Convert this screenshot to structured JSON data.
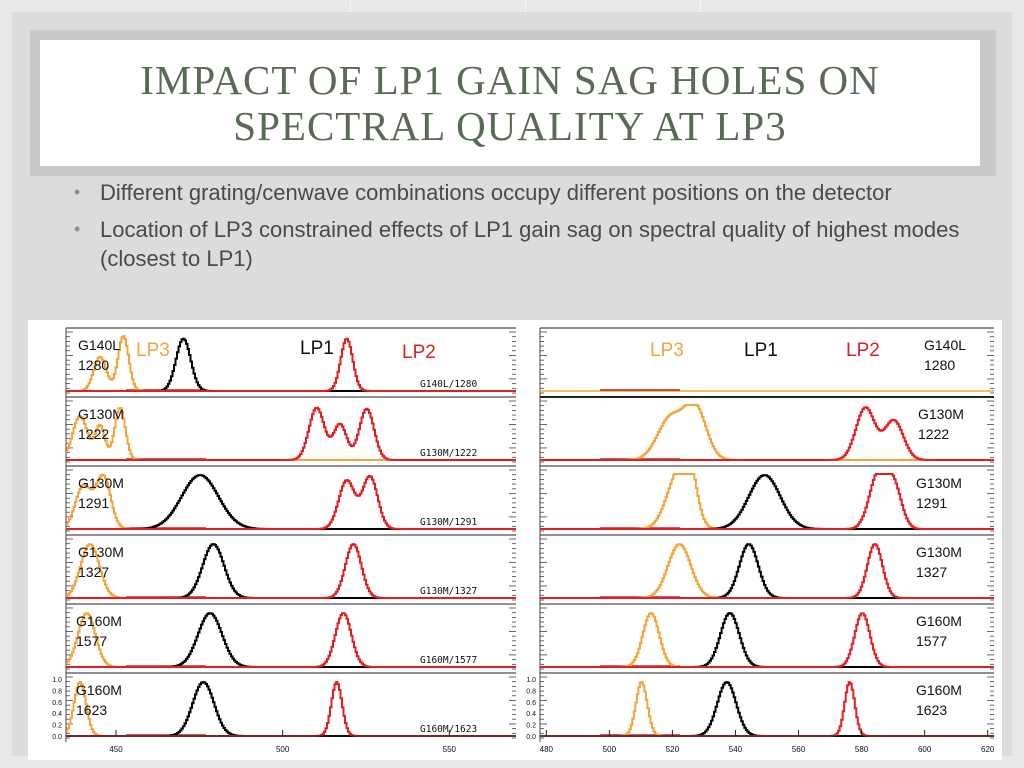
{
  "slide": {
    "title_line1": "IMPACT OF LP1 GAIN SAG HOLES ON",
    "title_line2": "SPECTRAL QUALITY AT LP3",
    "bullets": [
      "Different grating/cenwave combinations occupy different positions on the detector",
      "Location of LP3 constrained effects of LP1 gain sag on spectral quality of highest modes (closest to LP1)"
    ]
  },
  "colors": {
    "lp3": "#f5a43a",
    "lp1": "#000000",
    "lp2": "#e02020",
    "title": "#596b56"
  },
  "chart_data": [
    {
      "type": "line",
      "peak_labels": [
        "LP3",
        "LP1",
        "LP2"
      ],
      "y_ticks": [
        "1.0",
        "0.8",
        "0.6",
        "0.4",
        "0.2",
        "0.0"
      ],
      "x_ticks": [
        "450",
        "500",
        "550"
      ],
      "xlim": [
        435,
        570
      ],
      "panels": [
        {
          "label1": "G140L",
          "label2": "1280",
          "tag": "G140L/1280",
          "lp3": [
            [
              445,
              0.62,
              1.9
            ],
            [
              452,
              1.0,
              1.6
            ]
          ],
          "lp1": [
            [
              470,
              0.95,
              2.2
            ]
          ],
          "lp2": [
            [
              519,
              0.95,
              1.8
            ]
          ]
        },
        {
          "label1": "G130M",
          "label2": "1222",
          "tag": "G130M/1222",
          "lp3": [
            [
              439,
              0.8,
              2.2
            ],
            [
              445,
              0.62,
              1.5
            ],
            [
              451,
              0.95,
              1.6
            ]
          ],
          "lp1": [],
          "lp2": [
            [
              510,
              0.95,
              2.3
            ],
            [
              517,
              0.65,
              2.0
            ],
            [
              525,
              0.93,
              2.2
            ]
          ]
        },
        {
          "label1": "G130M",
          "label2": "1291",
          "tag": "G130M/1291",
          "lp3": [
            [
              440,
              0.78,
              2.4
            ],
            [
              446,
              0.95,
              2.2
            ]
          ],
          "lp1": [
            [
              475,
              0.98,
              5.5
            ]
          ],
          "lp2": [
            [
              519,
              0.88,
              2.4
            ],
            [
              526,
              0.95,
              2.3
            ]
          ]
        },
        {
          "label1": "G130M",
          "label2": "1327",
          "tag": "G130M/1327",
          "lp3": [
            [
              442,
              0.98,
              2.8
            ]
          ],
          "lp1": [
            [
              479,
              0.98,
              3.2
            ]
          ],
          "lp2": [
            [
              521,
              0.98,
              2.4
            ]
          ]
        },
        {
          "label1": "G160M",
          "label2": "1577",
          "tag": "G160M/1577",
          "lp3": [
            [
              441,
              0.98,
              2.6
            ]
          ],
          "lp1": [
            [
              478,
              0.98,
              3.6
            ]
          ],
          "lp2": [
            [
              518,
              0.98,
              2.4
            ]
          ]
        },
        {
          "label1": "G160M",
          "label2": "1623",
          "tag": "G160M/1623",
          "lp3": [
            [
              439,
              0.98,
              1.8
            ]
          ],
          "lp1": [
            [
              476,
              0.98,
              3.2
            ]
          ],
          "lp2": [
            [
              516,
              0.98,
              1.6
            ]
          ]
        }
      ]
    },
    {
      "type": "line",
      "peak_labels": [
        "LP3",
        "LP1",
        "LP2"
      ],
      "y_ticks": [
        "1.0",
        "0.8",
        "0.6",
        "0.4",
        "0.2",
        "0.0"
      ],
      "x_ticks": [
        "480",
        "500",
        "520",
        "540",
        "560",
        "580",
        "600",
        "620"
      ],
      "xlim": [
        478,
        622
      ],
      "panels": [
        {
          "label1": "G140L",
          "label2": "1280",
          "tag": "",
          "lp3": [],
          "lp1": [],
          "lp2": []
        },
        {
          "label1": "G130M",
          "label2": "1222",
          "tag": "",
          "lp3": [
            [
              519,
              0.75,
              4.0
            ],
            [
              527,
              0.95,
              3.5
            ]
          ],
          "lp1": [],
          "lp2": [
            [
              581,
              0.95,
              3.0
            ],
            [
              590,
              0.72,
              3.0
            ]
          ]
        },
        {
          "label1": "G130M",
          "label2": "1291",
          "tag": "",
          "lp3": [
            [
              521,
              0.85,
              3.5
            ],
            [
              525,
              0.95,
              2.5
            ]
          ],
          "lp1": [
            [
              549,
              0.98,
              5.0
            ]
          ],
          "lp2": [
            [
              585,
              0.98,
              2.8
            ],
            [
              590,
              0.75,
              2.5
            ]
          ]
        },
        {
          "label1": "G130M",
          "label2": "1327",
          "tag": "",
          "lp3": [
            [
              522,
              0.98,
              3.6
            ]
          ],
          "lp1": [
            [
              544,
              0.98,
              3.0
            ]
          ],
          "lp2": [
            [
              584,
              0.98,
              2.4
            ]
          ]
        },
        {
          "label1": "G160M",
          "label2": "1577",
          "tag": "",
          "lp3": [
            [
              513,
              0.98,
              2.6
            ]
          ],
          "lp1": [
            [
              538,
              0.98,
              3.0
            ]
          ],
          "lp2": [
            [
              580,
              0.98,
              2.4
            ]
          ]
        },
        {
          "label1": "G160M",
          "label2": "1623",
          "tag": "",
          "lp3": [
            [
              510,
              0.98,
              1.8
            ]
          ],
          "lp1": [
            [
              537,
              0.98,
              3.0
            ]
          ],
          "lp2": [
            [
              576,
              0.98,
              1.6
            ]
          ]
        }
      ]
    }
  ]
}
